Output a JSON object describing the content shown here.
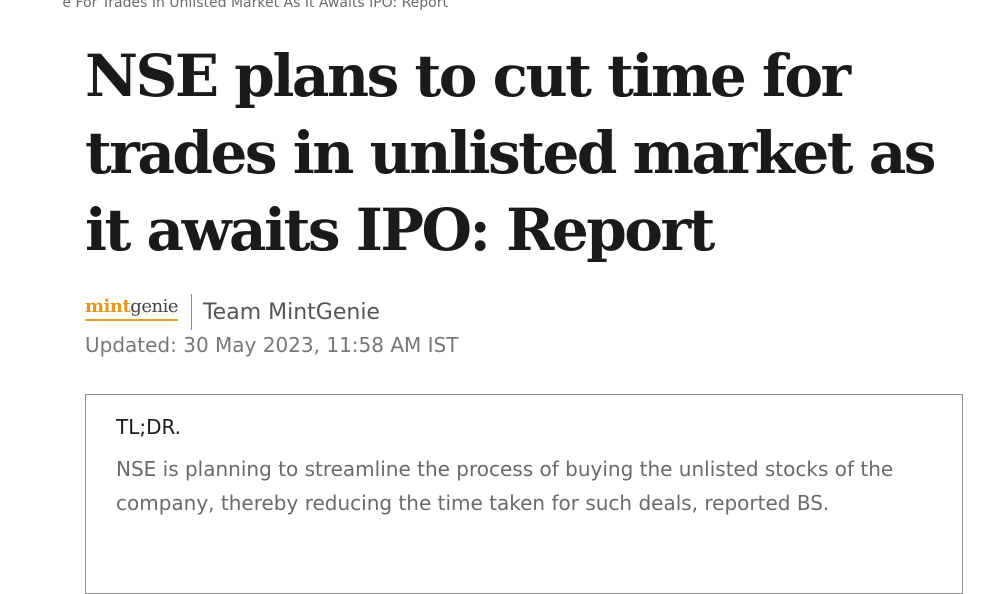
{
  "breadcrumb": {
    "text": "e For Trades In Unlisted Market As It Awaits IPO: Report"
  },
  "article": {
    "headline": "NSE plans to cut time for trades in unlisted market as it awaits IPO: Report",
    "logo": {
      "part1": "mint",
      "part2": "genie"
    },
    "author": "Team MintGenie",
    "updated": "Updated: 30 May 2023, 11:58 AM IST"
  },
  "tldr": {
    "heading": "TL;DR.",
    "body": "NSE is planning to streamline the process of buying the unlisted stocks of the company, thereby reducing the time taken for such deals, reported BS."
  },
  "colors": {
    "logo_accent": "#e8971a",
    "text_primary": "#1a1a1a",
    "text_muted": "#6a6a6a",
    "box_border": "#8e8e8e"
  }
}
